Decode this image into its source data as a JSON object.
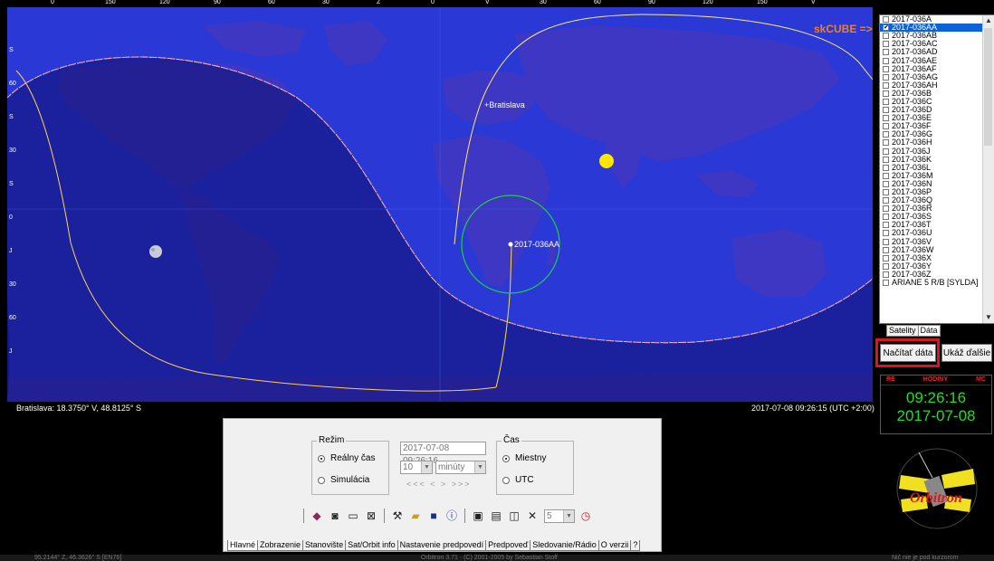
{
  "map": {
    "top_ticks": [
      "0",
      "150",
      "120",
      "90",
      "60",
      "30",
      "Z",
      "0",
      "V",
      "30",
      "60",
      "90",
      "120",
      "150",
      "V"
    ],
    "left_ticks": [
      "S",
      "60",
      "S",
      "30",
      "S",
      "0",
      "J",
      "30",
      "60",
      "J"
    ],
    "city_label": "+Bratislava",
    "sat_label": "2017-036AA",
    "skcube_label": "skCUBE =>",
    "status_left": "Bratislava: 18.3750° V, 48.8125° S",
    "status_right": "2017-07-08 09:26:15 (UTC +2:00)"
  },
  "satellites": {
    "items": [
      "2017-036A",
      "2017-036AA",
      "2017-036AB",
      "2017-036AC",
      "2017-036AD",
      "2017-036AE",
      "2017-036AF",
      "2017-036AG",
      "2017-036AH",
      "2017-036B",
      "2017-036C",
      "2017-036D",
      "2017-036E",
      "2017-036F",
      "2017-036G",
      "2017-036H",
      "2017-036J",
      "2017-036K",
      "2017-036L",
      "2017-036M",
      "2017-036N",
      "2017-036P",
      "2017-036Q",
      "2017-036R",
      "2017-036S",
      "2017-036T",
      "2017-036U",
      "2017-036V",
      "2017-036W",
      "2017-036X",
      "2017-036Y",
      "2017-036Z",
      "ARIANE 5 R/B [SYLDA]"
    ],
    "selected_index": 1,
    "tabs": [
      "Satelity",
      "Dáta"
    ]
  },
  "buttons": {
    "load": "Načítať dáta",
    "more": "Ukáž ďalšie"
  },
  "clock": {
    "labels": [
      "RE",
      "HODINY",
      "MC"
    ],
    "time": "09:26:16",
    "date": "2017-07-08"
  },
  "logo": {
    "text": "Orbitron"
  },
  "panel": {
    "mode_legend": "Režim",
    "mode_real": "Reálny čas",
    "mode_sim": "Simulácia",
    "datetime_value": "2017-07-08 09:26:16",
    "step_value": "10",
    "unit_value": "minúty",
    "nav_buttons": "<<<   <   >   >>>",
    "time_legend": "Čas",
    "time_local": "Miestny",
    "time_utc": "UTC",
    "step_select": "5",
    "tabs": [
      "Hlavné",
      "Zobrazenie",
      "Stanovište",
      "Sat/Orbit info",
      "Nastavenie predpovedí",
      "Predpoveď",
      "Sledovanie/Rádio",
      "O verzii",
      "?"
    ]
  },
  "bottom_bar": {
    "left": "95.2144° Z, 46.3626° S [EN76]",
    "center": "Orbitron 3.71 · (C) 2001-2005 by Sebastian Stoff",
    "right": "Nič nie je pod kurzorom"
  },
  "colors": {
    "ocean": "#1f2fc4",
    "land": "#4a3ed0",
    "night": "#1a1a95",
    "accent_red": "#d8161d",
    "clock_green": "#22dd22",
    "skcube_orange": "#f08020"
  }
}
